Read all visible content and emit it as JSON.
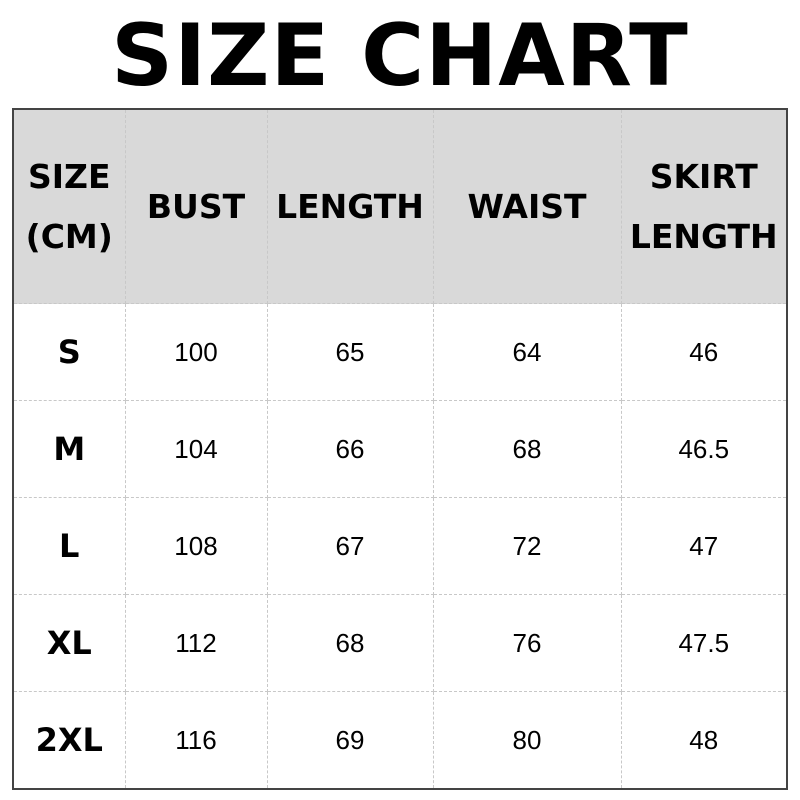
{
  "title": "SIZE CHART",
  "header_bg": "#d9d9d9",
  "columns": [
    {
      "line1": "SIZE",
      "line2": "(CM)"
    },
    {
      "line1": "BUST",
      "line2": ""
    },
    {
      "line1": "LENGTH",
      "line2": ""
    },
    {
      "line1": "WAIST",
      "line2": ""
    },
    {
      "line1": "SKIRT",
      "line2": "LENGTH"
    }
  ],
  "rows": [
    [
      "S",
      "100",
      "65",
      "64",
      "46"
    ],
    [
      "M",
      "104",
      "66",
      "68",
      "46.5"
    ],
    [
      "L",
      "108",
      "67",
      "72",
      "47"
    ],
    [
      "XL",
      "112",
      "68",
      "76",
      "47.5"
    ],
    [
      "2XL",
      "116",
      "69",
      "80",
      "48"
    ]
  ]
}
